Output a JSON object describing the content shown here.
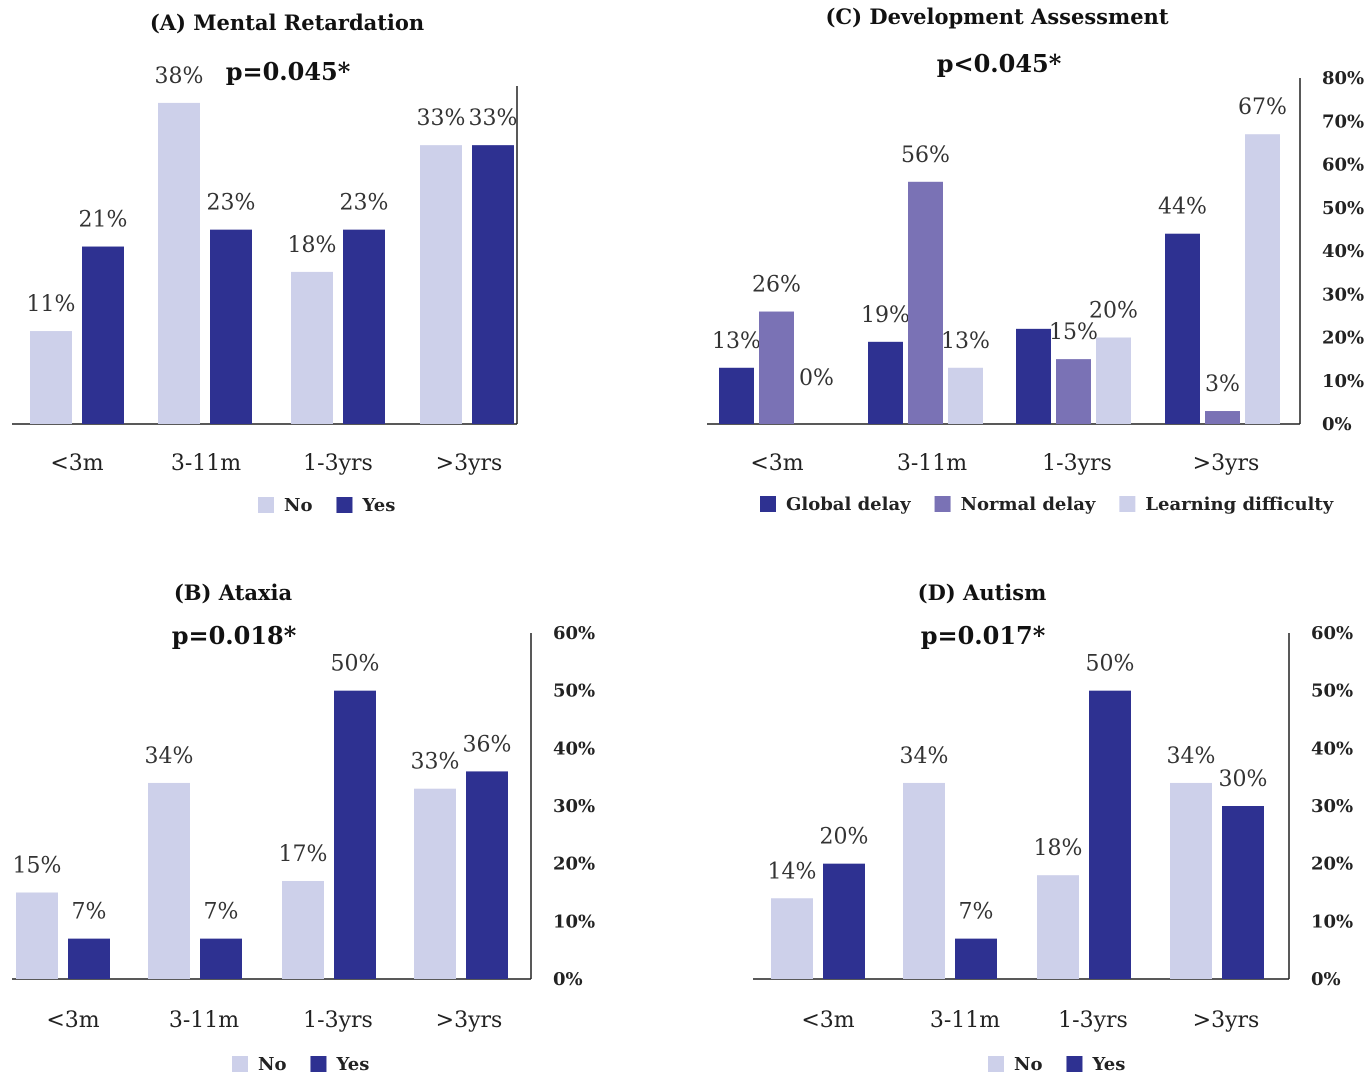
{
  "chart_data": [
    {
      "id": "A",
      "type": "bar",
      "title": "(A) Mental Retardation",
      "subtitle": "p=0.045*",
      "categories": [
        "<3m",
        "3-11m",
        "1-3yrs",
        ">3yrs"
      ],
      "series": [
        {
          "name": "No",
          "values": [
            11,
            38,
            18,
            33
          ],
          "labels": [
            "11%",
            "38%",
            "18%",
            "33%"
          ],
          "color": "#cdd0ea"
        },
        {
          "name": "Yes",
          "values": [
            21,
            23,
            23,
            33
          ],
          "labels": [
            "21%",
            "23%",
            "23%",
            "33%"
          ],
          "color": "#2e3191"
        }
      ],
      "ylim": [
        0,
        40
      ],
      "yticks": [],
      "axis_side": "right",
      "legend_position": "bottom"
    },
    {
      "id": "B",
      "type": "bar",
      "title": "(B) Ataxia",
      "subtitle": "p=0.018*",
      "categories": [
        "<3m",
        "3-11m",
        "1-3yrs",
        ">3yrs"
      ],
      "series": [
        {
          "name": "No",
          "values": [
            15,
            34,
            17,
            33
          ],
          "labels": [
            "15%",
            "34%",
            "17%",
            "33%"
          ],
          "color": "#cdd0ea"
        },
        {
          "name": "Yes",
          "values": [
            7,
            7,
            50,
            36
          ],
          "labels": [
            "7%",
            "7%",
            "50%",
            "36%"
          ],
          "color": "#2e3191"
        }
      ],
      "ylim": [
        0,
        60
      ],
      "yticks": [
        "0%",
        "10%",
        "20%",
        "30%",
        "40%",
        "50%",
        "60%"
      ],
      "axis_side": "right",
      "legend_position": "bottom"
    },
    {
      "id": "C",
      "type": "bar",
      "title": "(C)  Development Assessment",
      "subtitle": "p<0.045*",
      "categories": [
        "<3m",
        "3-11m",
        "1-3yrs",
        ">3yrs"
      ],
      "series": [
        {
          "name": "Global delay",
          "values": [
            13,
            19,
            22,
            44
          ],
          "labels": [
            "13%",
            "19%",
            "",
            "44%"
          ],
          "color": "#2e3191"
        },
        {
          "name": "Normal delay",
          "values": [
            26,
            56,
            15,
            3
          ],
          "labels": [
            "26%",
            "56%",
            "15%",
            "3%"
          ],
          "color": "#7a72b5"
        },
        {
          "name": "Learning difficulty",
          "values": [
            0,
            13,
            20,
            67
          ],
          "labels": [
            "0%",
            "13%",
            "20%",
            "67%"
          ],
          "color": "#cdd0ea"
        }
      ],
      "ylim": [
        0,
        80
      ],
      "yticks": [
        "0%",
        "10%",
        "20%",
        "30%",
        "40%",
        "50%",
        "60%",
        "70%",
        "80%"
      ],
      "axis_side": "right",
      "legend_position": "bottom"
    },
    {
      "id": "D",
      "type": "bar",
      "title": "(D) Autism",
      "subtitle": "p=0.017*",
      "categories": [
        "<3m",
        "3-11m",
        "1-3yrs",
        ">3yrs"
      ],
      "series": [
        {
          "name": "No",
          "values": [
            14,
            34,
            18,
            34
          ],
          "labels": [
            "14%",
            "34%",
            "18%",
            "34%"
          ],
          "color": "#cdd0ea"
        },
        {
          "name": "Yes",
          "values": [
            20,
            7,
            50,
            30
          ],
          "labels": [
            "20%",
            "7%",
            "50%",
            "30%"
          ],
          "color": "#2e3191"
        }
      ],
      "ylim": [
        0,
        60
      ],
      "yticks": [
        "0%",
        "10%",
        "20%",
        "30%",
        "40%",
        "50%",
        "60%"
      ],
      "axis_side": "right",
      "legend_position": "bottom"
    }
  ]
}
